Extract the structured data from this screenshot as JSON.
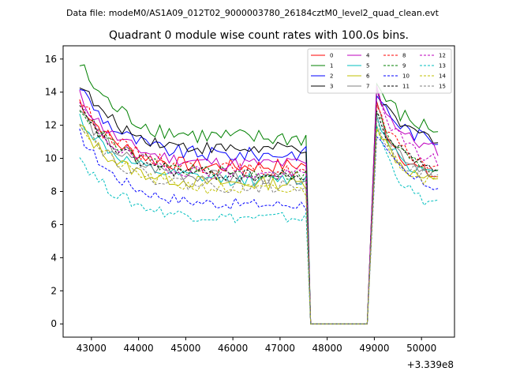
{
  "chart_data": {
    "type": "line",
    "suptitle": "Data file: modeM0/AS1A09_012T02_9000003780_26184cztM0_level2_quad_clean.evt",
    "title": "Quadrant 0 module wise count rates with 100.0s bins.",
    "x_offset_label": "+3.339e8",
    "xlim": [
      42400,
      50700
    ],
    "ylim": [
      -0.8,
      16.8
    ],
    "x_ticks": [
      43000,
      44000,
      45000,
      46000,
      47000,
      48000,
      49000,
      50000
    ],
    "x_tick_labels": [
      "43000",
      "44000",
      "45000",
      "46000",
      "47000",
      "48000",
      "49000",
      "50000"
    ],
    "y_ticks": [
      0,
      2,
      4,
      6,
      8,
      10,
      12,
      14,
      16
    ],
    "y_tick_labels": [
      "0",
      "2",
      "4",
      "6",
      "8",
      "10",
      "12",
      "14",
      "16"
    ],
    "legend_position": "top-right",
    "gap": {
      "drop_start": 47600,
      "drop_end": 47650,
      "rise_start": 48850,
      "rise_end": 48950,
      "value": 0
    },
    "series": [
      {
        "name": "0",
        "color": "#ff0000",
        "dash": "solid",
        "start": 13.5,
        "plateau": 9.0,
        "end_plateau": 9.6,
        "after_peak": 13.2,
        "after_end": 8.5,
        "noise": 0.45
      },
      {
        "name": "1",
        "color": "#008000",
        "dash": "solid",
        "start": 15.7,
        "plateau": 11.0,
        "end_plateau": 11.2,
        "after_peak": 14.5,
        "after_end": 11.5,
        "noise": 0.55
      },
      {
        "name": "2",
        "color": "#0000ff",
        "dash": "solid",
        "start": 14.4,
        "plateau": 9.7,
        "end_plateau": 10.3,
        "after_peak": 14.0,
        "after_end": 10.8,
        "noise": 0.45
      },
      {
        "name": "3",
        "color": "#000000",
        "dash": "solid",
        "start": 14.6,
        "plateau": 10.2,
        "end_plateau": 10.6,
        "after_peak": 13.8,
        "after_end": 11.0,
        "noise": 0.4
      },
      {
        "name": "4",
        "color": "#bf00bf",
        "dash": "solid",
        "start": 13.8,
        "plateau": 9.4,
        "end_plateau": 9.7,
        "after_peak": 14.2,
        "after_end": 10.2,
        "noise": 0.4
      },
      {
        "name": "5",
        "color": "#00bfbf",
        "dash": "solid",
        "start": 12.5,
        "plateau": 8.5,
        "end_plateau": 8.7,
        "after_peak": 12.6,
        "after_end": 8.6,
        "noise": 0.4
      },
      {
        "name": "6",
        "color": "#bfbf00",
        "dash": "solid",
        "start": 12.0,
        "plateau": 8.2,
        "end_plateau": 8.5,
        "after_peak": 12.2,
        "after_end": 8.2,
        "noise": 0.4
      },
      {
        "name": "7",
        "color": "#808080",
        "dash": "solid",
        "start": 13.0,
        "plateau": 8.6,
        "end_plateau": 8.8,
        "after_peak": 12.9,
        "after_end": 8.8,
        "noise": 0.4
      },
      {
        "name": "8",
        "color": "#ff0000",
        "dash": "dashed",
        "start": 13.6,
        "plateau": 9.3,
        "end_plateau": 9.2,
        "after_peak": 13.0,
        "after_end": 9.2,
        "noise": 0.4
      },
      {
        "name": "9",
        "color": "#008000",
        "dash": "dashed",
        "start": 13.2,
        "plateau": 9.0,
        "end_plateau": 9.0,
        "after_peak": 12.8,
        "after_end": 9.0,
        "noise": 0.4
      },
      {
        "name": "10",
        "color": "#0000ff",
        "dash": "dashed",
        "start": 11.5,
        "plateau": 7.0,
        "end_plateau": 7.2,
        "after_peak": 11.5,
        "after_end": 8.0,
        "noise": 0.35
      },
      {
        "name": "11",
        "color": "#000000",
        "dash": "dashed",
        "start": 13.0,
        "plateau": 8.8,
        "end_plateau": 8.9,
        "after_peak": 12.5,
        "after_end": 9.3,
        "noise": 0.4
      },
      {
        "name": "12",
        "color": "#bf00bf",
        "dash": "dashed",
        "start": 13.3,
        "plateau": 8.9,
        "end_plateau": 9.0,
        "after_peak": 14.0,
        "after_end": 9.5,
        "noise": 0.4
      },
      {
        "name": "13",
        "color": "#00bfbf",
        "dash": "dashed",
        "start": 10.1,
        "plateau": 6.2,
        "end_plateau": 6.4,
        "after_peak": 12.0,
        "after_end": 6.7,
        "noise": 0.35
      },
      {
        "name": "14",
        "color": "#bfbf00",
        "dash": "dashed",
        "start": 12.2,
        "plateau": 8.1,
        "end_plateau": 8.0,
        "after_peak": 12.0,
        "after_end": 8.3,
        "noise": 0.4
      },
      {
        "name": "15",
        "color": "#808080",
        "dash": "dashed",
        "start": 12.4,
        "plateau": 8.0,
        "end_plateau": 8.3,
        "after_peak": 12.2,
        "after_end": 8.5,
        "noise": 0.4
      }
    ]
  }
}
